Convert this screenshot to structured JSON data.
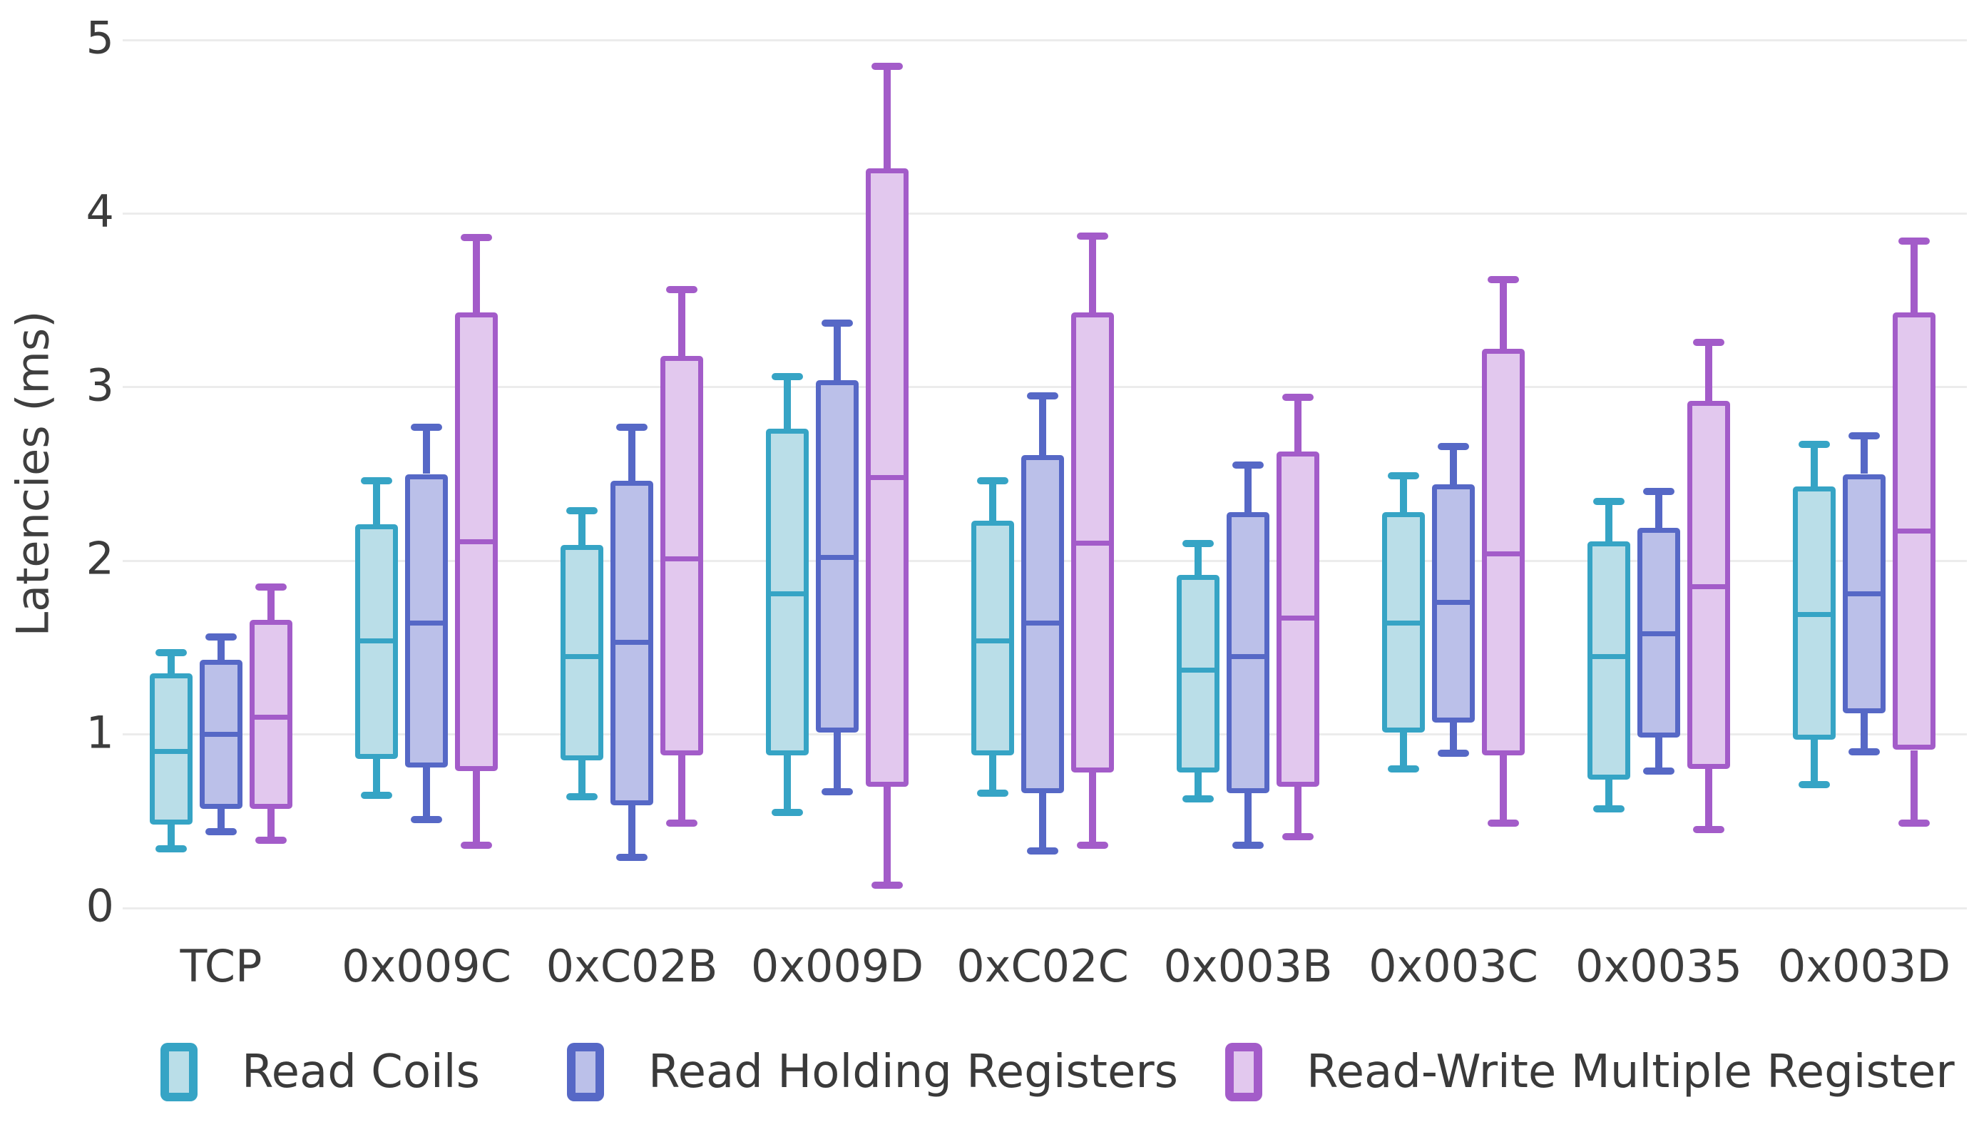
{
  "chart_data": {
    "type": "boxplot",
    "title": "",
    "xlabel": "",
    "ylabel": "Latencies (ms)",
    "ylim": [
      0,
      5
    ],
    "yticks": [
      "0",
      "1",
      "2",
      "3",
      "4",
      "5"
    ],
    "grid": "horizontal",
    "legend_position": "bottom",
    "categories": [
      "TCP",
      "0x009C",
      "0xC02B",
      "0x009D",
      "0xC02C",
      "0x003B",
      "0x003C",
      "0x0035",
      "0x003D"
    ],
    "series": [
      {
        "name": "Read Coils",
        "color": "#36a4c5",
        "fill": "#badee8",
        "boxes": [
          {
            "min": 0.34,
            "q1": 0.48,
            "med": 0.9,
            "q3": 1.35,
            "max": 1.47
          },
          {
            "min": 0.65,
            "q1": 0.86,
            "med": 1.54,
            "q3": 2.21,
            "max": 2.46
          },
          {
            "min": 0.64,
            "q1": 0.85,
            "med": 1.45,
            "q3": 2.09,
            "max": 2.29
          },
          {
            "min": 0.55,
            "q1": 0.88,
            "med": 1.81,
            "q3": 2.76,
            "max": 3.06
          },
          {
            "min": 0.66,
            "q1": 0.88,
            "med": 1.54,
            "q3": 2.23,
            "max": 2.46
          },
          {
            "min": 0.63,
            "q1": 0.78,
            "med": 1.37,
            "q3": 1.92,
            "max": 2.1
          },
          {
            "min": 0.8,
            "q1": 1.01,
            "med": 1.64,
            "q3": 2.28,
            "max": 2.49
          },
          {
            "min": 0.57,
            "q1": 0.74,
            "med": 1.45,
            "q3": 2.11,
            "max": 2.34
          },
          {
            "min": 0.71,
            "q1": 0.97,
            "med": 1.69,
            "q3": 2.43,
            "max": 2.67
          }
        ]
      },
      {
        "name": "Read Holding Registers",
        "color": "#5668c6",
        "fill": "#bbc0e9",
        "boxes": [
          {
            "min": 0.44,
            "q1": 0.57,
            "med": 1.0,
            "q3": 1.43,
            "max": 1.56
          },
          {
            "min": 0.51,
            "q1": 0.81,
            "med": 1.64,
            "q3": 2.5,
            "max": 2.77
          },
          {
            "min": 0.29,
            "q1": 0.59,
            "med": 1.53,
            "q3": 2.46,
            "max": 2.77
          },
          {
            "min": 0.67,
            "q1": 1.01,
            "med": 2.02,
            "q3": 3.04,
            "max": 3.37
          },
          {
            "min": 0.33,
            "q1": 0.66,
            "med": 1.64,
            "q3": 2.61,
            "max": 2.95
          },
          {
            "min": 0.36,
            "q1": 0.66,
            "med": 1.45,
            "q3": 2.28,
            "max": 2.55
          },
          {
            "min": 0.89,
            "q1": 1.07,
            "med": 1.76,
            "q3": 2.44,
            "max": 2.66
          },
          {
            "min": 0.79,
            "q1": 0.98,
            "med": 1.58,
            "q3": 2.19,
            "max": 2.4
          },
          {
            "min": 0.9,
            "q1": 1.12,
            "med": 1.81,
            "q3": 2.5,
            "max": 2.72
          }
        ]
      },
      {
        "name": "Read-Write Multiple Register",
        "color": "#a35cc9",
        "fill": "#e2c8ee",
        "boxes": [
          {
            "min": 0.39,
            "q1": 0.57,
            "med": 1.1,
            "q3": 1.66,
            "max": 1.85
          },
          {
            "min": 0.36,
            "q1": 0.79,
            "med": 2.11,
            "q3": 3.43,
            "max": 3.86
          },
          {
            "min": 0.49,
            "q1": 0.88,
            "med": 2.01,
            "q3": 3.18,
            "max": 3.56
          },
          {
            "min": 0.13,
            "q1": 0.7,
            "med": 2.48,
            "q3": 4.26,
            "max": 4.85
          },
          {
            "min": 0.36,
            "q1": 0.78,
            "med": 2.1,
            "q3": 3.43,
            "max": 3.87
          },
          {
            "min": 0.41,
            "q1": 0.7,
            "med": 1.67,
            "q3": 2.63,
            "max": 2.94
          },
          {
            "min": 0.49,
            "q1": 0.88,
            "med": 2.04,
            "q3": 3.22,
            "max": 3.62
          },
          {
            "min": 0.45,
            "q1": 0.8,
            "med": 1.85,
            "q3": 2.92,
            "max": 3.26
          },
          {
            "min": 0.49,
            "q1": 0.91,
            "med": 2.17,
            "q3": 3.43,
            "max": 3.84
          }
        ]
      }
    ],
    "colors": {
      "grid": "#ececec",
      "text": "#3c3c3c"
    }
  }
}
